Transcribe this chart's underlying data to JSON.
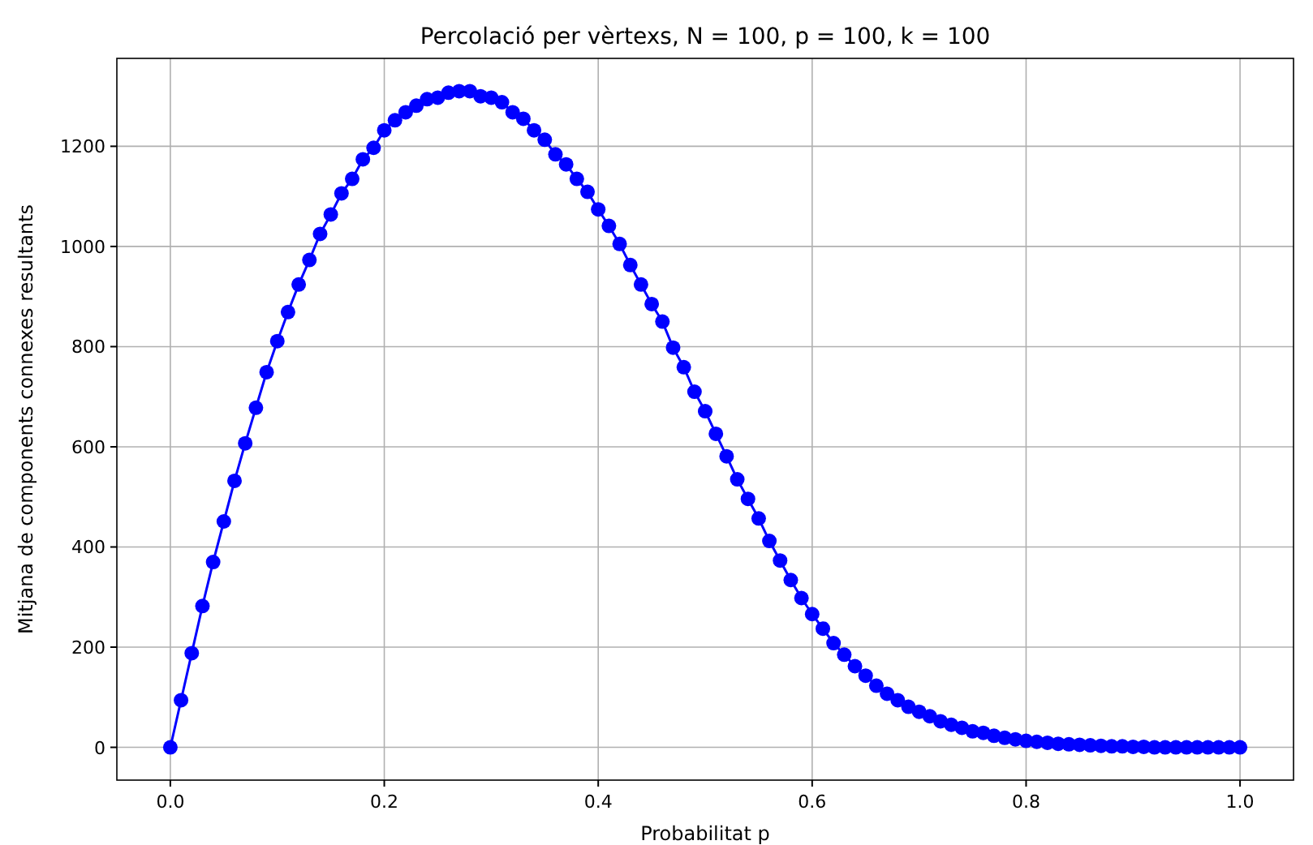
{
  "chart_data": {
    "type": "line",
    "title": "Percolació per vèrtexs, N = 100, p = 100, k = 100",
    "xlabel": "Probabilitat p",
    "ylabel": "Mitjana de components connexes resultants",
    "x": [
      0,
      0.01,
      0.02,
      0.03,
      0.04,
      0.05,
      0.06,
      0.07,
      0.08,
      0.09,
      0.1,
      0.11,
      0.12,
      0.13,
      0.14,
      0.15,
      0.16,
      0.17,
      0.18,
      0.19,
      0.2,
      0.21,
      0.22,
      0.23,
      0.24,
      0.25,
      0.26,
      0.27,
      0.28,
      0.29,
      0.3,
      0.31,
      0.32,
      0.33,
      0.34,
      0.35,
      0.36,
      0.37,
      0.38,
      0.39,
      0.4,
      0.41,
      0.42,
      0.43,
      0.44,
      0.45,
      0.46,
      0.47,
      0.48,
      0.49,
      0.5,
      0.51,
      0.52,
      0.53,
      0.54,
      0.55,
      0.56,
      0.57,
      0.58,
      0.59,
      0.6,
      0.61,
      0.62,
      0.63,
      0.64,
      0.65,
      0.66,
      0.67,
      0.68,
      0.69,
      0.7,
      0.71,
      0.72,
      0.73,
      0.74,
      0.75,
      0.76,
      0.77,
      0.78,
      0.79,
      0.8,
      0.81,
      0.82,
      0.83,
      0.84,
      0.85,
      0.86,
      0.87,
      0.88,
      0.89,
      0.9,
      0.91,
      0.92,
      0.93,
      0.94,
      0.95,
      0.96,
      0.97,
      0.98,
      0.99,
      1
    ],
    "series": [
      {
        "color": "#0000ff",
        "values": [
          0,
          94,
          188,
          282,
          370,
          451,
          532,
          607,
          678,
          749,
          811,
          869,
          924,
          973,
          1025,
          1064,
          1106,
          1135,
          1174,
          1197,
          1232,
          1252,
          1268,
          1281,
          1294,
          1297,
          1307,
          1310,
          1310,
          1300,
          1297,
          1288,
          1268,
          1255,
          1232,
          1213,
          1184,
          1164,
          1135,
          1109,
          1074,
          1041,
          1005,
          963,
          924,
          885,
          850,
          798,
          759,
          710,
          671,
          626,
          581,
          535,
          496,
          457,
          412,
          373,
          334,
          298,
          266,
          237,
          208,
          185,
          162,
          143,
          123,
          107,
          94,
          81,
          71,
          62,
          52,
          45,
          39,
          32,
          29,
          23,
          19,
          16,
          13,
          11,
          9,
          7,
          6,
          5,
          4,
          3,
          2,
          2,
          1,
          1,
          0,
          0,
          0,
          0,
          0,
          0,
          0,
          0,
          0
        ]
      }
    ],
    "xlim": [
      -0.05,
      1.05
    ],
    "ylim": [
      -65.5,
      1375.5
    ],
    "xticks": [
      {
        "value": 0,
        "label": "0.0"
      },
      {
        "value": 0.2,
        "label": "0.2"
      },
      {
        "value": 0.4,
        "label": "0.4"
      },
      {
        "value": 0.6,
        "label": "0.6"
      },
      {
        "value": 0.8,
        "label": "0.8"
      },
      {
        "value": 1,
        "label": "1.0"
      }
    ],
    "yticks": [
      0,
      200,
      400,
      600,
      800,
      1000,
      1200
    ],
    "grid": true,
    "marker": "circle",
    "line_style": "solid"
  }
}
